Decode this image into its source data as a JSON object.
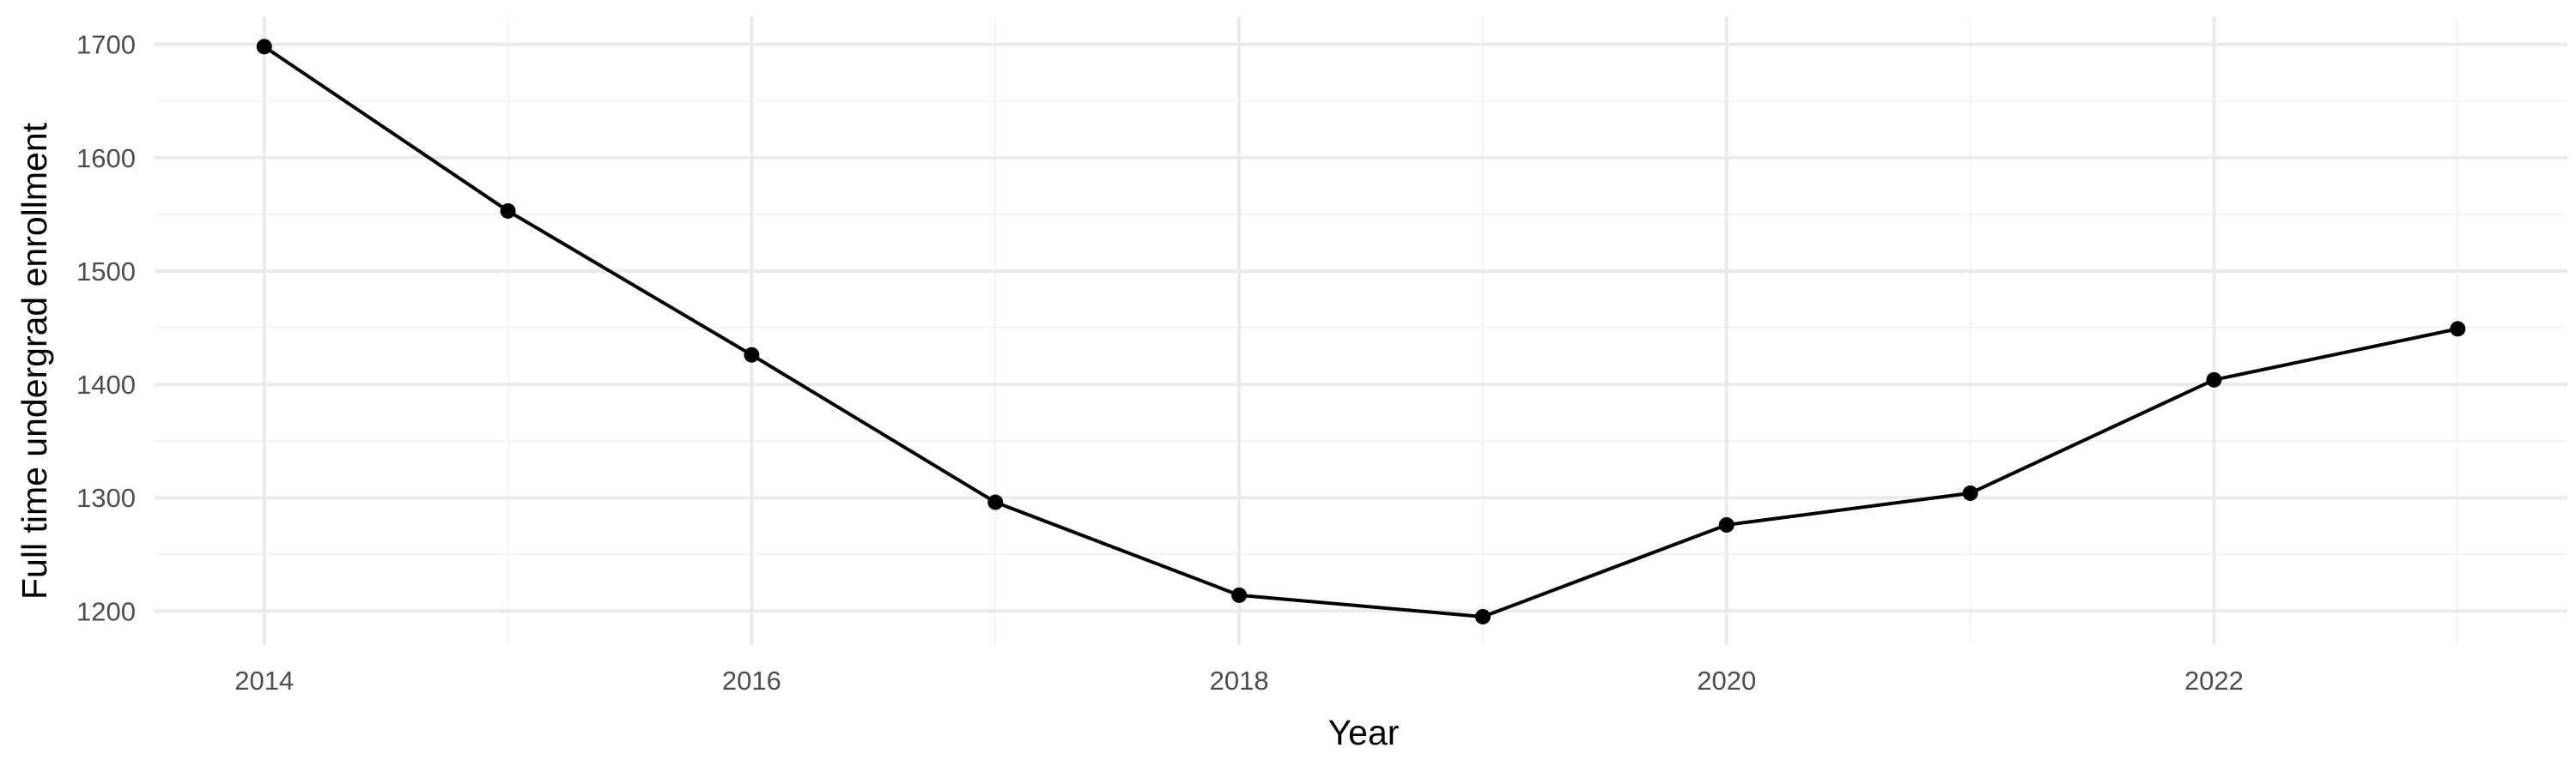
{
  "chart_data": {
    "type": "line",
    "title": "",
    "xlabel": "Year",
    "ylabel": "Full time undergrad enrollment",
    "x": [
      2014,
      2015,
      2016,
      2017,
      2018,
      2019,
      2020,
      2021,
      2022,
      2023
    ],
    "series": [
      {
        "values": [
          1698,
          1553,
          1426,
          1296,
          1214,
          1195,
          1276,
          1304,
          1404,
          1449
        ],
        "color": "#000000"
      }
    ],
    "xlim": [
      2013.55,
      2023.45
    ],
    "ylim": [
      1170,
      1724
    ],
    "x_ticks": [
      2014,
      2016,
      2018,
      2020,
      2022
    ],
    "x_minor_ticks": [
      2015,
      2017,
      2019,
      2021,
      2023
    ],
    "y_ticks": [
      1200,
      1300,
      1400,
      1500,
      1600,
      1700
    ],
    "y_minor_ticks": [
      1250,
      1350,
      1450,
      1550,
      1650
    ],
    "x_tick_labels": [
      "2014",
      "2016",
      "2018",
      "2020",
      "2022"
    ],
    "y_tick_labels": [
      "1200",
      "1300",
      "1400",
      "1500",
      "1600",
      "1700"
    ],
    "grid": true,
    "legend": "none",
    "theme": "minimal"
  }
}
